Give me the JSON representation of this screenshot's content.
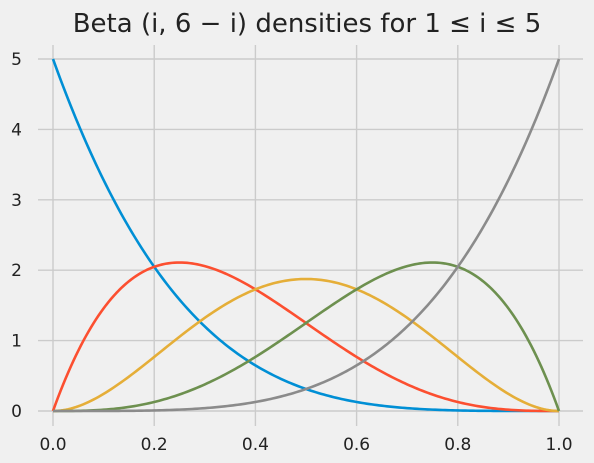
{
  "chart_data": {
    "type": "line",
    "title": "Beta (i, 6 − i) densities for 1 ≤ i ≤ 5",
    "xlabel": "",
    "ylabel": "",
    "xlim": [
      0,
      1
    ],
    "ylim": [
      0,
      5
    ],
    "x_ticks": [
      "0.0",
      "0.2",
      "0.4",
      "0.6",
      "0.8",
      "1.0"
    ],
    "y_ticks": [
      "0",
      "1",
      "2",
      "3",
      "4",
      "5"
    ],
    "grid": true,
    "legend": "none",
    "series": [
      {
        "i": 1,
        "color": "#008fd5",
        "peak": {
          "x": 0.0,
          "y": 5.0
        }
      },
      {
        "i": 2,
        "color": "#fc4f30",
        "peak": {
          "x": 0.25,
          "y": 2.11
        }
      },
      {
        "i": 3,
        "color": "#e5ae38",
        "peak": {
          "x": 0.5,
          "y": 1.875
        }
      },
      {
        "i": 4,
        "color": "#6d904f",
        "peak": {
          "x": 0.75,
          "y": 2.11
        }
      },
      {
        "i": 5,
        "color": "#8b8b8b",
        "peak": {
          "x": 1.0,
          "y": 5.0
        }
      }
    ]
  }
}
